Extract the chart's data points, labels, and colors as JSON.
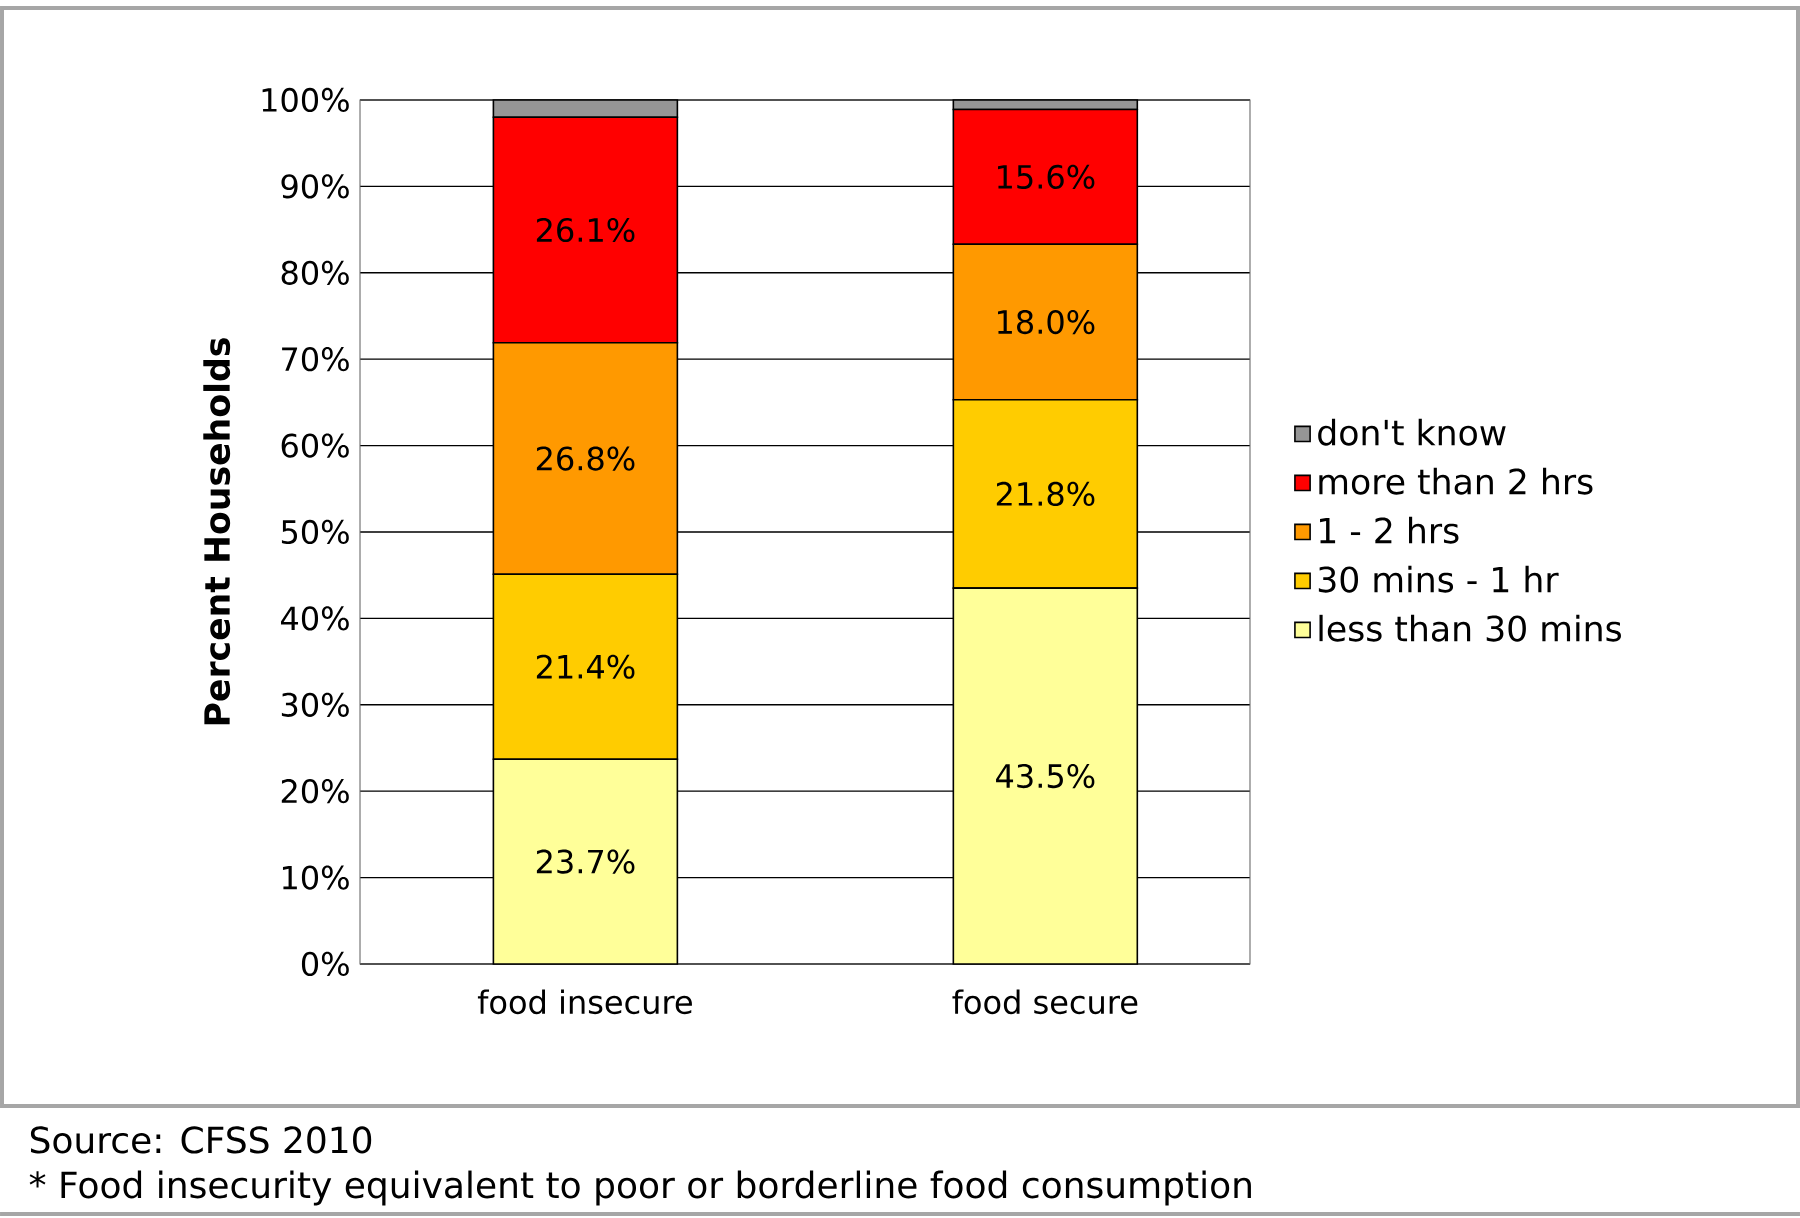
{
  "chart_data": {
    "type": "bar",
    "stacked": true,
    "ylabel": "Percent Households",
    "categories": [
      "food insecure",
      "food secure"
    ],
    "series": [
      {
        "name": "less than 30 mins",
        "color": "#ffff99",
        "values": [
          23.7,
          43.5
        ],
        "value_labels": [
          "23.7%",
          "43.5%"
        ]
      },
      {
        "name": "30 mins - 1 hr",
        "color": "#ffcc00",
        "values": [
          21.4,
          21.8
        ],
        "value_labels": [
          "21.4%",
          "21.8%"
        ]
      },
      {
        "name": "1 - 2 hrs",
        "color": "#ff9900",
        "values": [
          26.8,
          18.0
        ],
        "value_labels": [
          "26.8%",
          "18.0%"
        ]
      },
      {
        "name": "more than 2 hrs",
        "color": "#ff0000",
        "values": [
          26.1,
          15.6
        ],
        "value_labels": [
          "26.1%",
          "15.6%"
        ]
      },
      {
        "name": "don't know",
        "color": "#969696",
        "values": [
          2.0,
          1.1
        ],
        "value_labels": [
          null,
          null
        ]
      }
    ],
    "ylim": [
      0,
      100
    ],
    "yticks": [
      {
        "value": 0,
        "label": "0%"
      },
      {
        "value": 10,
        "label": "10%"
      },
      {
        "value": 20,
        "label": "20%"
      },
      {
        "value": 30,
        "label": "30%"
      },
      {
        "value": 40,
        "label": "40%"
      },
      {
        "value": 50,
        "label": "50%"
      },
      {
        "value": 60,
        "label": "60%"
      },
      {
        "value": 70,
        "label": "70%"
      },
      {
        "value": 80,
        "label": "80%"
      },
      {
        "value": 90,
        "label": "90%"
      },
      {
        "value": 100,
        "label": "100%"
      }
    ],
    "grid": "y",
    "legend": "right",
    "annotations": [
      "Source: CFSS 2010",
      "* Food insecurity equivalent to poor or borderline food consumption"
    ]
  }
}
